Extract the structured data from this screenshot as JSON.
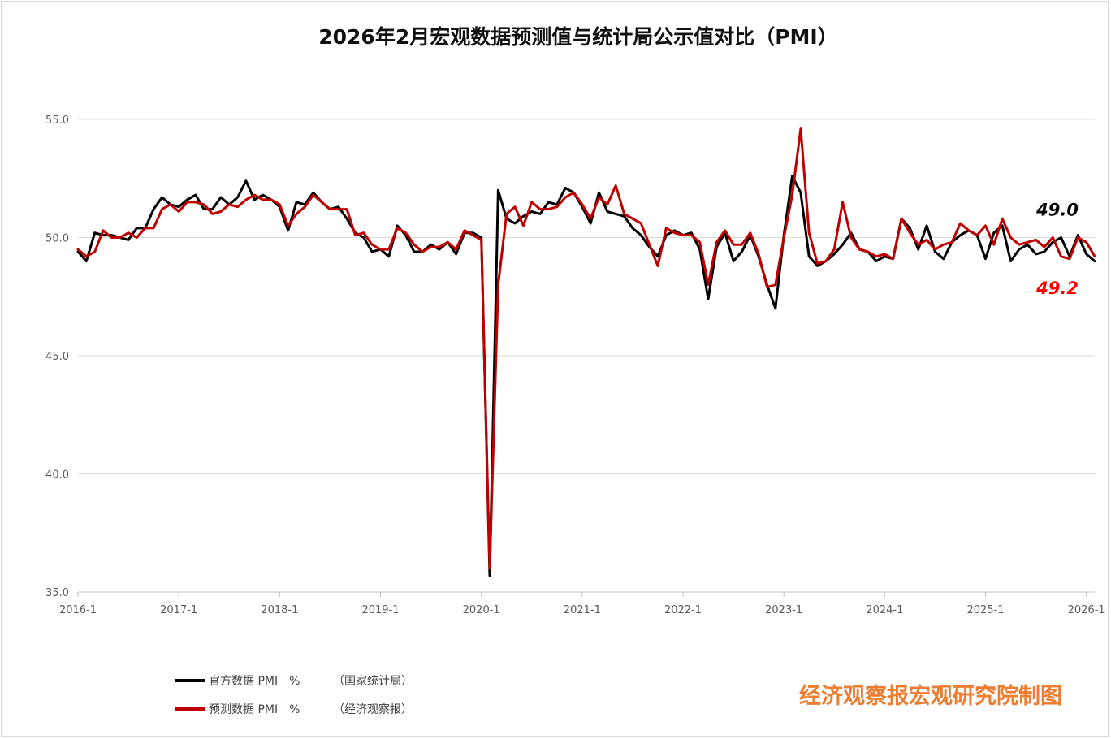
{
  "chart_data": {
    "type": "line",
    "title": "2026年2月宏观数据预测值与统计局公示值对比（PMI）",
    "ylim": [
      35,
      55
    ],
    "yticks": [
      "35.0",
      "40.0",
      "45.0",
      "50.0",
      "55.0"
    ],
    "xlim": [
      0,
      121
    ],
    "xticks": [
      {
        "label": "2016-1",
        "index": 0
      },
      {
        "label": "2017-1",
        "index": 12
      },
      {
        "label": "2018-1",
        "index": 24
      },
      {
        "label": "2019-1",
        "index": 36
      },
      {
        "label": "2020-1",
        "index": 48
      },
      {
        "label": "2021-1",
        "index": 60
      },
      {
        "label": "2022-1",
        "index": 72
      },
      {
        "label": "2023-1",
        "index": 84
      },
      {
        "label": "2024-1",
        "index": 96
      },
      {
        "label": "2025-1",
        "index": 108
      },
      {
        "label": "2026-1",
        "index": 120
      }
    ],
    "grid": "horizontal",
    "legend_position": "bottom-left",
    "series": [
      {
        "name": "官方数据 PMI　%",
        "source": "（国家统计局）",
        "color": "#000000",
        "values": [
          49.4,
          49.0,
          50.2,
          50.1,
          50.1,
          50.0,
          49.9,
          50.4,
          50.4,
          51.2,
          51.7,
          51.4,
          51.3,
          51.6,
          51.8,
          51.2,
          51.2,
          51.7,
          51.4,
          51.7,
          52.4,
          51.6,
          51.8,
          51.6,
          51.3,
          50.3,
          51.5,
          51.4,
          51.9,
          51.5,
          51.2,
          51.3,
          50.8,
          50.2,
          50.0,
          49.4,
          49.5,
          49.2,
          50.5,
          50.1,
          49.4,
          49.4,
          49.7,
          49.5,
          49.8,
          49.3,
          50.2,
          50.2,
          50.0,
          35.7,
          52.0,
          50.8,
          50.6,
          50.9,
          51.1,
          51.0,
          51.5,
          51.4,
          52.1,
          51.9,
          51.3,
          50.6,
          51.9,
          51.1,
          51.0,
          50.9,
          50.4,
          50.1,
          49.6,
          49.2,
          50.1,
          50.3,
          50.1,
          50.2,
          49.5,
          47.4,
          49.6,
          50.2,
          49.0,
          49.4,
          50.1,
          49.2,
          48.0,
          47.0,
          50.1,
          52.6,
          51.9,
          49.2,
          48.8,
          49.0,
          49.3,
          49.7,
          50.2,
          49.5,
          49.4,
          49.0,
          49.2,
          49.1,
          50.8,
          50.4,
          49.5,
          50.5,
          49.4,
          49.1,
          49.8,
          50.1,
          50.3,
          50.1,
          49.1,
          50.2,
          50.5,
          49.0,
          49.5,
          49.7,
          49.3,
          49.4,
          49.8,
          50.0,
          49.2,
          50.1,
          49.3,
          49.0
        ]
      },
      {
        "name": "预测数据 PMI　%",
        "source": "（经济观察报）",
        "color": "#c00000",
        "values": [
          49.5,
          49.2,
          49.4,
          50.3,
          50.0,
          50.0,
          50.2,
          50.0,
          50.4,
          50.4,
          51.2,
          51.4,
          51.1,
          51.5,
          51.5,
          51.4,
          51.0,
          51.1,
          51.4,
          51.3,
          51.6,
          51.8,
          51.6,
          51.6,
          51.4,
          50.5,
          51.0,
          51.3,
          51.8,
          51.5,
          51.2,
          51.2,
          51.2,
          50.1,
          50.2,
          49.7,
          49.5,
          49.5,
          50.4,
          50.2,
          49.7,
          49.4,
          49.6,
          49.6,
          49.8,
          49.5,
          50.3,
          50.1,
          49.9,
          36.0,
          48.0,
          51.0,
          51.3,
          50.5,
          51.5,
          51.2,
          51.2,
          51.3,
          51.7,
          51.9,
          51.4,
          50.8,
          51.7,
          51.4,
          52.2,
          51.0,
          50.8,
          50.6,
          49.7,
          48.8,
          50.4,
          50.2,
          50.1,
          50.1,
          49.8,
          48.0,
          49.8,
          50.3,
          49.7,
          49.7,
          50.2,
          49.3,
          47.9,
          48.0,
          50.0,
          51.8,
          54.6,
          50.2,
          48.9,
          49.0,
          49.5,
          51.5,
          50.0,
          49.5,
          49.4,
          49.2,
          49.3,
          49.1,
          50.8,
          50.2,
          49.7,
          49.9,
          49.5,
          49.7,
          49.8,
          50.6,
          50.3,
          50.1,
          50.5,
          49.7,
          50.8,
          50.0,
          49.7,
          49.8,
          49.9,
          49.6,
          50.0,
          49.2,
          49.1,
          50.0,
          49.8,
          49.2
        ]
      }
    ],
    "annotations": [
      {
        "text": "49.0",
        "series": 0,
        "color": "#000000"
      },
      {
        "text": "49.2",
        "series": 1,
        "color": "#ff0000"
      }
    ]
  },
  "credit": "经济观察报宏观研究院制图"
}
